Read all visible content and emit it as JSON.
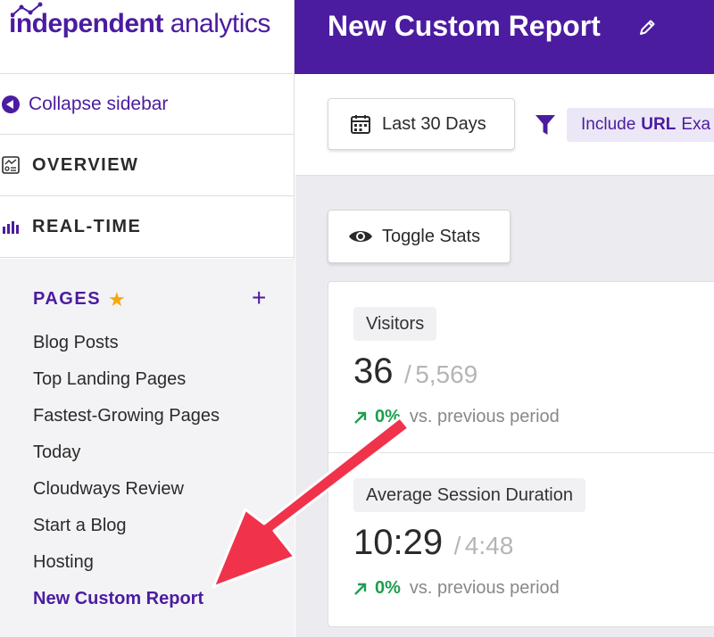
{
  "logo": {
    "word1": "independent",
    "word2": "analytics"
  },
  "header": {
    "title": "New Custom Report"
  },
  "sidebar": {
    "collapse_label": "Collapse sidebar",
    "nav": [
      {
        "label": "OVERVIEW",
        "icon": "overview-icon"
      },
      {
        "label": "REAL-TIME",
        "icon": "bar-chart-icon"
      }
    ],
    "pages": {
      "title": "PAGES",
      "items": [
        "Blog Posts",
        "Top Landing Pages",
        "Fastest-Growing Pages",
        "Today",
        "Cloudways Review",
        "Start a Blog",
        "Hosting",
        "New Custom Report"
      ],
      "active_index": 7
    }
  },
  "toolbar": {
    "date_label": "Last 30 Days",
    "filter": {
      "prefix": "Include",
      "field": "URL",
      "suffix": "Exa"
    }
  },
  "main": {
    "toggle_label": "Toggle Stats",
    "stats": [
      {
        "label": "Visitors",
        "value": "36",
        "separator": "/",
        "previous": "5,569",
        "change": "0%",
        "vs": "vs. previous period"
      },
      {
        "label": "Average Session Duration",
        "value": "10:29",
        "separator": "/",
        "previous": "4:48",
        "change": "0%",
        "vs": "vs. previous period"
      }
    ]
  },
  "colors": {
    "brand": "#4b1ca0",
    "positive": "#1e9e4f",
    "annotation": "#f0334b",
    "star": "#f4a90c"
  }
}
